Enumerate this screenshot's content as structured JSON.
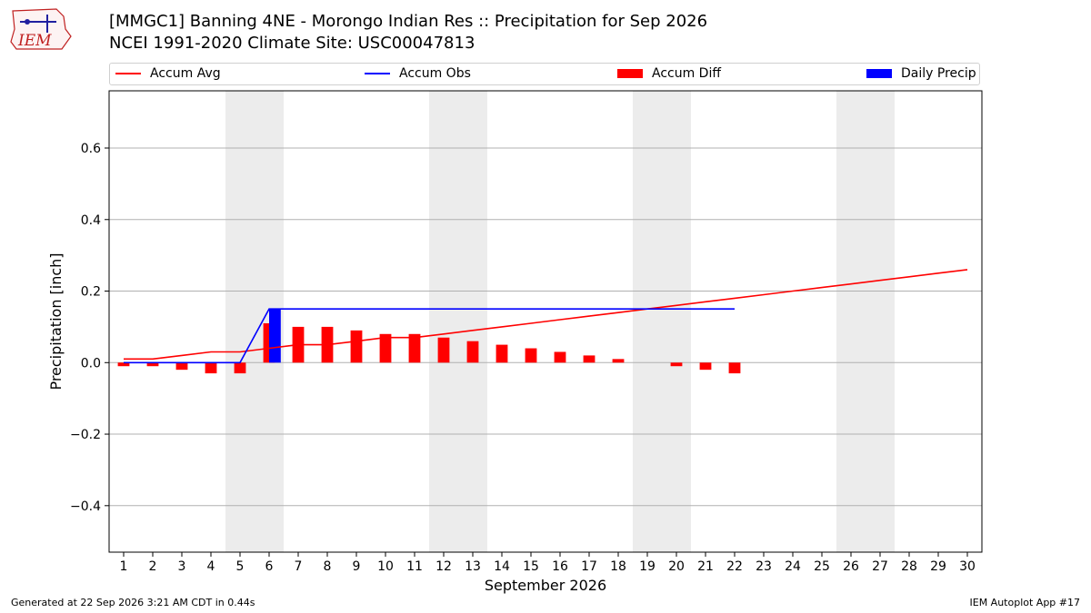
{
  "header": {
    "title_line1": "[MMGC1] Banning 4NE - Morongo Indian Res :: Precipitation for Sep 2026",
    "title_line2": "NCEI 1991-2020 Climate Site: USC00047813",
    "logo_text": "IEM"
  },
  "legend": {
    "accum_avg": "Accum Avg",
    "accum_obs": "Accum Obs",
    "accum_diff": "Accum Diff",
    "daily_precip": "Daily Precip"
  },
  "colors": {
    "accum_avg": "#ff0000",
    "accum_obs": "#0000ff",
    "accum_diff": "#ff0000",
    "daily_precip": "#0000ff",
    "weekend_band": "#ececec",
    "grid": "#b0b0b0"
  },
  "footer": {
    "left": "Generated at 22 Sep 2026 3:21 AM CDT in 0.44s",
    "right": "IEM Autoplot App #17"
  },
  "chart_data": {
    "type": "bar",
    "xlabel": "September 2026",
    "ylabel": "Precipitation [inch]",
    "xlim": [
      0.5,
      30.5
    ],
    "ylim": [
      -0.53,
      0.76
    ],
    "yticks": [
      -0.4,
      -0.2,
      0.0,
      0.2,
      0.4,
      0.6
    ],
    "ytick_labels": [
      "−0.4",
      "−0.2",
      "0.0",
      "0.2",
      "0.4",
      "0.6"
    ],
    "days": [
      1,
      2,
      3,
      4,
      5,
      6,
      7,
      8,
      9,
      10,
      11,
      12,
      13,
      14,
      15,
      16,
      17,
      18,
      19,
      20,
      21,
      22,
      23,
      24,
      25,
      26,
      27,
      28,
      29,
      30
    ],
    "weekend_days": [
      5,
      6,
      12,
      13,
      19,
      20,
      26,
      27
    ],
    "grid": true,
    "legend_position": "top",
    "series": [
      {
        "name": "Accum Avg",
        "kind": "line",
        "x": [
          1,
          2,
          3,
          4,
          5,
          6,
          7,
          8,
          9,
          10,
          11,
          12,
          13,
          14,
          15,
          16,
          17,
          18,
          19,
          20,
          21,
          22,
          23,
          24,
          25,
          26,
          27,
          28,
          29,
          30
        ],
        "values": [
          0.01,
          0.01,
          0.02,
          0.03,
          0.03,
          0.04,
          0.05,
          0.05,
          0.06,
          0.07,
          0.07,
          0.08,
          0.09,
          0.1,
          0.11,
          0.12,
          0.13,
          0.14,
          0.15,
          0.16,
          0.17,
          0.18,
          0.19,
          0.2,
          0.21,
          0.22,
          0.23,
          0.24,
          0.25,
          0.26
        ]
      },
      {
        "name": "Accum Obs",
        "kind": "line",
        "x": [
          1,
          2,
          3,
          4,
          5,
          6,
          7,
          8,
          9,
          10,
          11,
          12,
          13,
          14,
          15,
          16,
          17,
          18,
          19,
          20,
          21,
          22
        ],
        "values": [
          0,
          0,
          0,
          0,
          0,
          0.15,
          0.15,
          0.15,
          0.15,
          0.15,
          0.15,
          0.15,
          0.15,
          0.15,
          0.15,
          0.15,
          0.15,
          0.15,
          0.15,
          0.15,
          0.15,
          0.15
        ]
      },
      {
        "name": "Accum Diff",
        "kind": "bar",
        "x": [
          1,
          2,
          3,
          4,
          5,
          6,
          7,
          8,
          9,
          10,
          11,
          12,
          13,
          14,
          15,
          16,
          17,
          18,
          19,
          20,
          21,
          22
        ],
        "values": [
          -0.01,
          -0.01,
          -0.02,
          -0.03,
          -0.03,
          0.11,
          0.1,
          0.1,
          0.09,
          0.08,
          0.08,
          0.07,
          0.06,
          0.05,
          0.04,
          0.03,
          0.02,
          0.01,
          0,
          -0.01,
          -0.02,
          -0.03
        ]
      },
      {
        "name": "Daily Precip",
        "kind": "bar",
        "x": [
          6
        ],
        "values": [
          0.15
        ]
      }
    ]
  }
}
